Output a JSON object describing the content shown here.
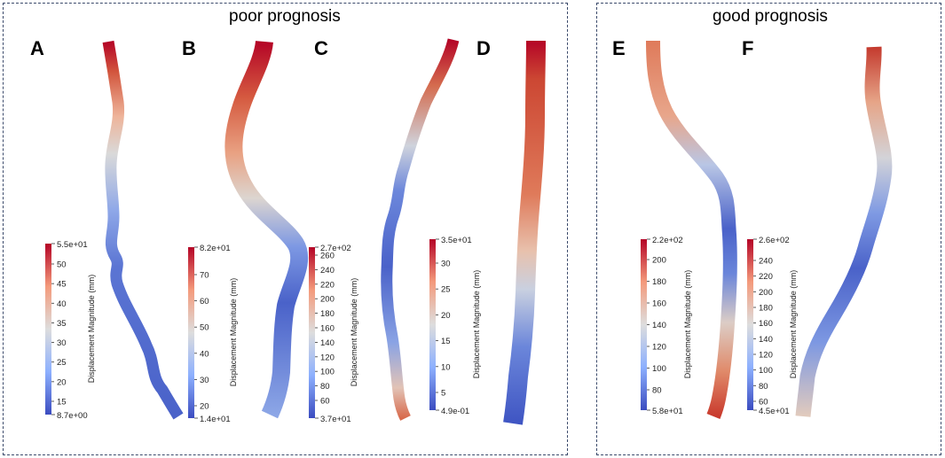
{
  "groups": {
    "poor": {
      "title": "poor prognosis"
    },
    "good": {
      "title": "good prognosis"
    }
  },
  "colormap": {
    "low": "#3b4cc0",
    "mid": "#dddddd",
    "high": "#b40426"
  },
  "colorbar_title": "Displacement Magnitude (mm)",
  "panels": [
    {
      "letter": "A",
      "max_label": "5.5e+01",
      "min_label": "8.7e+00",
      "ticks": [
        "50",
        "45",
        "40",
        "35",
        "30",
        "25",
        "20",
        "15"
      ]
    },
    {
      "letter": "B",
      "max_label": "8.2e+01",
      "min_label": "1.4e+01",
      "ticks": [
        "70",
        "60",
        "50",
        "40",
        "30",
        "20"
      ]
    },
    {
      "letter": "C",
      "max_label": "2.7e+02",
      "min_label": "3.7e+01",
      "ticks": [
        "260",
        "240",
        "220",
        "200",
        "180",
        "160",
        "140",
        "120",
        "100",
        "80",
        "60"
      ]
    },
    {
      "letter": "D",
      "max_label": "3.5e+01",
      "min_label": "4.9e-01",
      "ticks": [
        "30",
        "25",
        "20",
        "15",
        "10",
        "5"
      ]
    },
    {
      "letter": "E",
      "max_label": "2.2e+02",
      "min_label": "5.8e+01",
      "ticks": [
        "200",
        "180",
        "160",
        "140",
        "120",
        "100",
        "80"
      ]
    },
    {
      "letter": "F",
      "max_label": "2.6e+02",
      "min_label": "4.5e+01",
      "ticks": [
        "240",
        "220",
        "200",
        "180",
        "160",
        "140",
        "120",
        "100",
        "80",
        "60"
      ]
    }
  ]
}
